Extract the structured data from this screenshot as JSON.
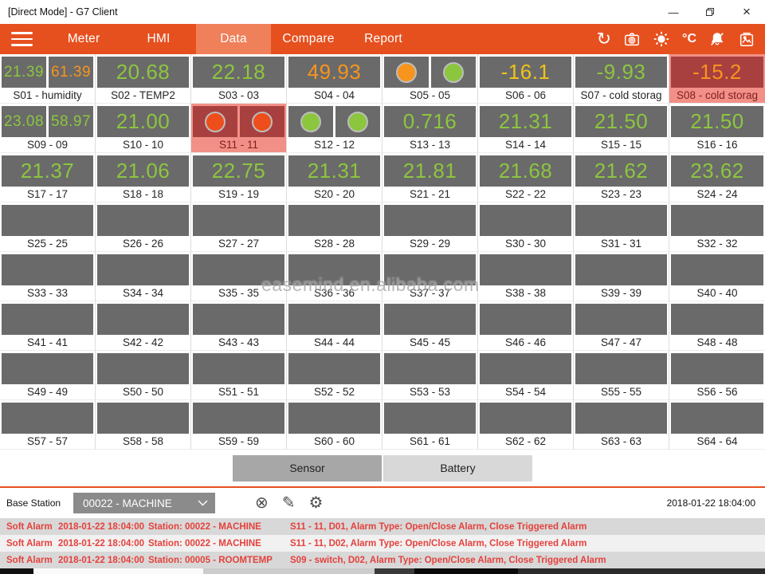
{
  "window": {
    "title": "[Direct Mode] - G7 Client",
    "controls": {
      "minimize_glyph": "—",
      "close_glyph": "×"
    }
  },
  "nav": {
    "items": [
      {
        "label": "Meter",
        "active": false
      },
      {
        "label": "HMI",
        "active": false
      },
      {
        "label": "Data",
        "active": true
      },
      {
        "label": "Compare",
        "active": false
      },
      {
        "label": "Report",
        "active": false
      }
    ],
    "sync_glyph": "↻",
    "temp_unit_label": "°C"
  },
  "grid": {
    "colors": {
      "green": "#8CC63E",
      "orange": "#F7941D",
      "yellow": "#EFC319",
      "alert": "#ED4E1B"
    },
    "cells": [
      {
        "label": "S01 - humidity",
        "boxes": [
          {
            "text": "21.39",
            "color": "green"
          },
          {
            "text": "61.39",
            "color": "orange"
          }
        ]
      },
      {
        "label": "S02 - TEMP2",
        "boxes": [
          {
            "text": "20.68",
            "color": "green"
          }
        ]
      },
      {
        "label": "S03 - 03",
        "boxes": [
          {
            "text": "22.18",
            "color": "green"
          }
        ]
      },
      {
        "label": "S04 - 04",
        "boxes": [
          {
            "text": "49.93",
            "color": "orange"
          }
        ]
      },
      {
        "label": "S05 - 05",
        "boxes": [
          {
            "dot": "orange"
          },
          {
            "dot": "green"
          }
        ]
      },
      {
        "label": "S06 - 06",
        "boxes": [
          {
            "text": "-16.1",
            "color": "yellow"
          }
        ]
      },
      {
        "label": "S07 - cold storag",
        "boxes": [
          {
            "text": "-9.93",
            "color": "green"
          }
        ]
      },
      {
        "label": "S08 - cold storag",
        "alarm": true,
        "boxes": [
          {
            "text": "-15.2",
            "color": "orange"
          }
        ]
      },
      {
        "label": "S09 - 09",
        "boxes": [
          {
            "text": "23.08",
            "color": "green"
          },
          {
            "text": "58.97",
            "color": "green"
          }
        ]
      },
      {
        "label": "S10 - 10",
        "boxes": [
          {
            "text": "21.00",
            "color": "green"
          }
        ]
      },
      {
        "label": "S11 - 11",
        "alarm": true,
        "boxes": [
          {
            "dot": "alert"
          },
          {
            "dot": "alert"
          }
        ]
      },
      {
        "label": "S12 - 12",
        "boxes": [
          {
            "dot": "green"
          },
          {
            "dot": "green"
          }
        ]
      },
      {
        "label": "S13 - 13",
        "boxes": [
          {
            "text": "0.716",
            "color": "green"
          }
        ]
      },
      {
        "label": "S14 - 14",
        "boxes": [
          {
            "text": "21.31",
            "color": "green"
          }
        ]
      },
      {
        "label": "S15 - 15",
        "boxes": [
          {
            "text": "21.50",
            "color": "green"
          }
        ]
      },
      {
        "label": "S16 - 16",
        "boxes": [
          {
            "text": "21.50",
            "color": "green"
          }
        ]
      },
      {
        "label": "S17 - 17",
        "boxes": [
          {
            "text": "21.37",
            "color": "green"
          }
        ]
      },
      {
        "label": "S18 - 18",
        "boxes": [
          {
            "text": "21.06",
            "color": "green"
          }
        ]
      },
      {
        "label": "S19 - 19",
        "boxes": [
          {
            "text": "22.75",
            "color": "green"
          }
        ]
      },
      {
        "label": "S20 - 20",
        "boxes": [
          {
            "text": "21.31",
            "color": "green"
          }
        ]
      },
      {
        "label": "S21 - 21",
        "boxes": [
          {
            "text": "21.81",
            "color": "green"
          }
        ]
      },
      {
        "label": "S22 - 22",
        "boxes": [
          {
            "text": "21.68",
            "color": "green"
          }
        ]
      },
      {
        "label": "S23 - 23",
        "boxes": [
          {
            "text": "21.62",
            "color": "green"
          }
        ]
      },
      {
        "label": "S24 - 24",
        "boxes": [
          {
            "text": "23.62",
            "color": "green"
          }
        ]
      },
      {
        "label": "S25 - 25",
        "boxes": [
          {}
        ]
      },
      {
        "label": "S26 - 26",
        "boxes": [
          {}
        ]
      },
      {
        "label": "S27 - 27",
        "boxes": [
          {}
        ]
      },
      {
        "label": "S28 - 28",
        "boxes": [
          {}
        ]
      },
      {
        "label": "S29 - 29",
        "boxes": [
          {}
        ]
      },
      {
        "label": "S30 - 30",
        "boxes": [
          {}
        ]
      },
      {
        "label": "S31 - 31",
        "boxes": [
          {}
        ]
      },
      {
        "label": "S32 - 32",
        "boxes": [
          {}
        ]
      },
      {
        "label": "S33 - 33",
        "boxes": [
          {}
        ]
      },
      {
        "label": "S34 - 34",
        "boxes": [
          {}
        ]
      },
      {
        "label": "S35 - 35",
        "boxes": [
          {}
        ]
      },
      {
        "label": "S36 - 36",
        "boxes": [
          {}
        ]
      },
      {
        "label": "S37 - 37",
        "boxes": [
          {}
        ]
      },
      {
        "label": "S38 - 38",
        "boxes": [
          {}
        ]
      },
      {
        "label": "S39 - 39",
        "boxes": [
          {}
        ]
      },
      {
        "label": "S40 - 40",
        "boxes": [
          {}
        ]
      },
      {
        "label": "S41 - 41",
        "boxes": [
          {}
        ]
      },
      {
        "label": "S42 - 42",
        "boxes": [
          {}
        ]
      },
      {
        "label": "S43 - 43",
        "boxes": [
          {}
        ]
      },
      {
        "label": "S44 - 44",
        "boxes": [
          {}
        ]
      },
      {
        "label": "S45 - 45",
        "boxes": [
          {}
        ]
      },
      {
        "label": "S46 - 46",
        "boxes": [
          {}
        ]
      },
      {
        "label": "S47 - 47",
        "boxes": [
          {}
        ]
      },
      {
        "label": "S48 - 48",
        "boxes": [
          {}
        ]
      },
      {
        "label": "S49 - 49",
        "boxes": [
          {}
        ]
      },
      {
        "label": "S50 - 50",
        "boxes": [
          {}
        ]
      },
      {
        "label": "S51 - 51",
        "boxes": [
          {}
        ]
      },
      {
        "label": "S52 - 52",
        "boxes": [
          {}
        ]
      },
      {
        "label": "S53 - 53",
        "boxes": [
          {}
        ]
      },
      {
        "label": "S54 - 54",
        "boxes": [
          {}
        ]
      },
      {
        "label": "S55 - 55",
        "boxes": [
          {}
        ]
      },
      {
        "label": "S56 - 56",
        "boxes": [
          {}
        ]
      },
      {
        "label": "S57 - 57",
        "boxes": [
          {}
        ]
      },
      {
        "label": "S58 - 58",
        "boxes": [
          {}
        ]
      },
      {
        "label": "S59 - 59",
        "boxes": [
          {}
        ]
      },
      {
        "label": "S60 - 60",
        "boxes": [
          {}
        ]
      },
      {
        "label": "S61 - 61",
        "boxes": [
          {}
        ]
      },
      {
        "label": "S62 - 62",
        "boxes": [
          {}
        ]
      },
      {
        "label": "S63 - 63",
        "boxes": [
          {}
        ]
      },
      {
        "label": "S64 - 64",
        "boxes": [
          {}
        ]
      }
    ]
  },
  "footer_buttons": {
    "sensor": "Sensor",
    "battery": "Battery"
  },
  "base_station": {
    "label": "Base Station",
    "selected_option": "00022 - MACHINE",
    "icons": [
      {
        "name": "cancel-icon",
        "glyph": "⊗"
      },
      {
        "name": "edit-icon",
        "glyph": "✎"
      },
      {
        "name": "settings-icon",
        "glyph": "⚙"
      }
    ],
    "timestamp": "2018-01-22 18:04:00"
  },
  "alarms": [
    {
      "severity": "Soft Alarm",
      "time": "2018-01-22 18:04:00",
      "station": "Station: 00022 - MACHINE",
      "detail": "S11 - 11, D01, Alarm Type: Open/Close Alarm, Close Triggered Alarm"
    },
    {
      "severity": "Soft Alarm",
      "time": "2018-01-22 18:04:00",
      "station": "Station: 00022 - MACHINE",
      "detail": "S11 - 11, D02, Alarm Type: Open/Close Alarm, Close Triggered Alarm"
    },
    {
      "severity": "Soft Alarm",
      "time": "2018-01-22 18:04:00",
      "station": "Station: 00005 - ROOMTEMP",
      "detail": "S09 - switch, D02, Alarm Type: Open/Close Alarm, Close Triggered Alarm"
    }
  ],
  "watermark": "easemind.en.alibaba.com"
}
